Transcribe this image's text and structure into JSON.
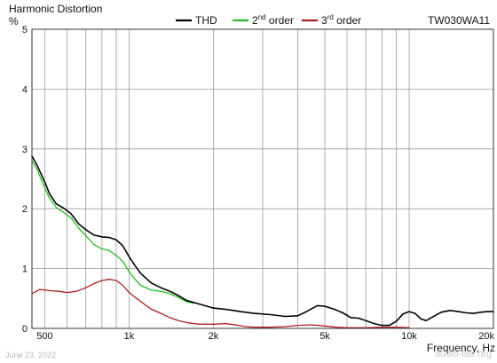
{
  "chart_data": {
    "type": "line",
    "title": "Harmonic Distortion",
    "ylabel": "%",
    "xlabel": "Frequency, Hz",
    "model": "TW030WA11",
    "xscale": "log",
    "xlim": [
      450,
      20000
    ],
    "ylim": [
      0,
      5
    ],
    "grid": true,
    "legend_position": "top-center",
    "y_ticks": [
      {
        "value": 0,
        "label": "0"
      },
      {
        "value": 1,
        "label": "1"
      },
      {
        "value": 2,
        "label": "2"
      },
      {
        "value": 3,
        "label": "3"
      },
      {
        "value": 4,
        "label": "4"
      },
      {
        "value": 5,
        "label": "5"
      }
    ],
    "x_ticks": [
      {
        "value": 500,
        "label": "500"
      },
      {
        "value": 1000,
        "label": "1k"
      },
      {
        "value": 2000,
        "label": "2k"
      },
      {
        "value": 5000,
        "label": "5k"
      },
      {
        "value": 10000,
        "label": "10k"
      },
      {
        "value": 20000,
        "label": "20k"
      }
    ],
    "series": [
      {
        "name": "THD",
        "color": "#000000",
        "points": [
          [
            450,
            2.88
          ],
          [
            470,
            2.72
          ],
          [
            500,
            2.45
          ],
          [
            520,
            2.25
          ],
          [
            550,
            2.08
          ],
          [
            580,
            2.02
          ],
          [
            620,
            1.92
          ],
          [
            660,
            1.75
          ],
          [
            700,
            1.65
          ],
          [
            750,
            1.56
          ],
          [
            800,
            1.53
          ],
          [
            850,
            1.52
          ],
          [
            900,
            1.48
          ],
          [
            950,
            1.38
          ],
          [
            1000,
            1.2
          ],
          [
            1050,
            1.05
          ],
          [
            1100,
            0.92
          ],
          [
            1200,
            0.76
          ],
          [
            1300,
            0.68
          ],
          [
            1400,
            0.62
          ],
          [
            1500,
            0.55
          ],
          [
            1600,
            0.47
          ],
          [
            1800,
            0.4
          ],
          [
            2000,
            0.34
          ],
          [
            2200,
            0.32
          ],
          [
            2500,
            0.28
          ],
          [
            2800,
            0.25
          ],
          [
            3200,
            0.23
          ],
          [
            3600,
            0.2
          ],
          [
            4000,
            0.21
          ],
          [
            4300,
            0.28
          ],
          [
            4700,
            0.38
          ],
          [
            5000,
            0.37
          ],
          [
            5400,
            0.32
          ],
          [
            5800,
            0.26
          ],
          [
            6200,
            0.18
          ],
          [
            6600,
            0.17
          ],
          [
            7000,
            0.13
          ],
          [
            7500,
            0.08
          ],
          [
            8000,
            0.05
          ],
          [
            8500,
            0.05
          ],
          [
            9000,
            0.12
          ],
          [
            9500,
            0.24
          ],
          [
            10000,
            0.28
          ],
          [
            10500,
            0.25
          ],
          [
            11000,
            0.16
          ],
          [
            11500,
            0.13
          ],
          [
            12000,
            0.18
          ],
          [
            13000,
            0.27
          ],
          [
            14000,
            0.3
          ],
          [
            15000,
            0.28
          ],
          [
            16000,
            0.26
          ],
          [
            17000,
            0.25
          ],
          [
            18000,
            0.27
          ],
          [
            19000,
            0.28
          ],
          [
            20000,
            0.28
          ]
        ]
      },
      {
        "name": "2nd order",
        "name_base": "2",
        "name_sup": "nd",
        "name_rest": " order",
        "color": "#22c01e",
        "points": [
          [
            450,
            2.8
          ],
          [
            470,
            2.65
          ],
          [
            500,
            2.35
          ],
          [
            520,
            2.18
          ],
          [
            550,
            2.02
          ],
          [
            580,
            1.95
          ],
          [
            620,
            1.85
          ],
          [
            660,
            1.68
          ],
          [
            700,
            1.55
          ],
          [
            750,
            1.4
          ],
          [
            800,
            1.33
          ],
          [
            850,
            1.3
          ],
          [
            900,
            1.22
          ],
          [
            950,
            1.12
          ],
          [
            1000,
            0.95
          ],
          [
            1050,
            0.82
          ],
          [
            1100,
            0.72
          ],
          [
            1200,
            0.64
          ],
          [
            1300,
            0.62
          ],
          [
            1400,
            0.58
          ],
          [
            1500,
            0.52
          ],
          [
            1600,
            0.45
          ],
          [
            1700,
            0.42
          ]
        ]
      },
      {
        "name": "3rd order",
        "name_base": "3",
        "name_sup": "rd",
        "name_rest": " order",
        "color": "#b01c1c",
        "points": [
          [
            450,
            0.58
          ],
          [
            480,
            0.65
          ],
          [
            520,
            0.63
          ],
          [
            560,
            0.62
          ],
          [
            600,
            0.6
          ],
          [
            650,
            0.62
          ],
          [
            700,
            0.68
          ],
          [
            750,
            0.75
          ],
          [
            800,
            0.8
          ],
          [
            850,
            0.82
          ],
          [
            900,
            0.8
          ],
          [
            950,
            0.72
          ],
          [
            1000,
            0.6
          ],
          [
            1100,
            0.45
          ],
          [
            1200,
            0.32
          ],
          [
            1300,
            0.25
          ],
          [
            1400,
            0.18
          ],
          [
            1500,
            0.13
          ],
          [
            1600,
            0.1
          ],
          [
            1700,
            0.08
          ],
          [
            1800,
            0.07
          ],
          [
            2000,
            0.07
          ],
          [
            2200,
            0.08
          ],
          [
            2400,
            0.06
          ],
          [
            2600,
            0.03
          ],
          [
            2800,
            0.02
          ],
          [
            3200,
            0.02
          ],
          [
            3600,
            0.03
          ],
          [
            4000,
            0.05
          ],
          [
            4500,
            0.06
          ],
          [
            5000,
            0.04
          ],
          [
            5500,
            0.02
          ],
          [
            6000,
            0.01
          ],
          [
            7000,
            0.01
          ],
          [
            8000,
            0.02
          ],
          [
            9000,
            0.02
          ],
          [
            10000,
            0.01
          ]
        ]
      }
    ]
  },
  "footer": {
    "date": "June 23, 2022",
    "site": "audio-lab.org"
  }
}
